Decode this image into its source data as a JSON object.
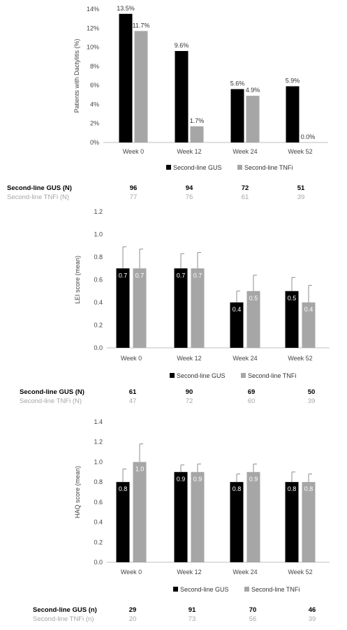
{
  "colors": {
    "gus": "#000000",
    "tnfi": "#a6a6a6",
    "axis": "#bfbfbf"
  },
  "chart_data": [
    {
      "type": "bar",
      "categories": [
        "Week 0",
        "Week 12",
        "Week 24",
        "Week 52"
      ],
      "ylabel": "Patients with Dactylitis (%)",
      "ylim": [
        0,
        14
      ],
      "yticks": [
        "0%",
        "2%",
        "4%",
        "6%",
        "8%",
        "10%",
        "12%",
        "14%"
      ],
      "series": [
        {
          "name": "Second-line GUS",
          "values": [
            13.5,
            9.6,
            5.6,
            5.9
          ],
          "labels": [
            "13.5%",
            "9.6%",
            "5.6%",
            "5.9%"
          ]
        },
        {
          "name": "Second-line TNFi",
          "values": [
            11.7,
            1.7,
            4.9,
            0.0
          ],
          "labels": [
            "11.7%",
            "1.7%",
            "4.9%",
            "0.0%"
          ]
        }
      ],
      "n_table": [
        {
          "label": "Second-line GUS (N)",
          "values": [
            "96",
            "94",
            "72",
            "51"
          ]
        },
        {
          "label": "Second-line TNFi (N)",
          "values": [
            "77",
            "76",
            "61",
            "39"
          ]
        }
      ]
    },
    {
      "type": "bar",
      "categories": [
        "Week 0",
        "Week 12",
        "Week 24",
        "Week 52"
      ],
      "ylabel": "LEI score (mean)",
      "ylim": [
        0,
        1.2
      ],
      "yticks": [
        "0.0",
        "0.2",
        "0.4",
        "0.6",
        "0.8",
        "1.0",
        "1.2"
      ],
      "series": [
        {
          "name": "Second-line GUS",
          "values": [
            0.7,
            0.7,
            0.4,
            0.5
          ],
          "labels": [
            "0.7",
            "0.7",
            "0.4",
            "0.5"
          ],
          "error_upper": [
            0.89,
            0.83,
            0.5,
            0.62
          ]
        },
        {
          "name": "Second-line TNFi",
          "values": [
            0.7,
            0.7,
            0.5,
            0.4
          ],
          "labels": [
            "0.7",
            "0.7",
            "0.5",
            "0.4"
          ],
          "error_upper": [
            0.87,
            0.84,
            0.64,
            0.55
          ]
        }
      ],
      "n_table": [
        {
          "label": "Second-line GUS (N)",
          "values": [
            "61",
            "90",
            "69",
            "50"
          ]
        },
        {
          "label": "Second-line TNFi (N)",
          "values": [
            "47",
            "72",
            "60",
            "39"
          ]
        }
      ]
    },
    {
      "type": "bar",
      "categories": [
        "Week 0",
        "Week 12",
        "Week 24",
        "Week 52"
      ],
      "ylabel": "HAQ score (mean)",
      "ylim": [
        0,
        1.4
      ],
      "yticks": [
        "0.0",
        "0.2",
        "0.4",
        "0.6",
        "0.8",
        "1.0",
        "1.2",
        "1.4"
      ],
      "series": [
        {
          "name": "Second-line GUS",
          "values": [
            0.8,
            0.9,
            0.8,
            0.8
          ],
          "labels": [
            "0.8",
            "0.9",
            "0.8",
            "0.8"
          ],
          "error_upper": [
            0.93,
            0.97,
            0.88,
            0.9
          ]
        },
        {
          "name": "Second-line TNFi",
          "values": [
            1.0,
            0.9,
            0.9,
            0.8
          ],
          "labels": [
            "1.0",
            "0.9",
            "0.9",
            "0.8"
          ],
          "error_upper": [
            1.18,
            0.98,
            0.98,
            0.88
          ]
        }
      ],
      "n_table": [
        {
          "label": "Second-line GUS (n)",
          "values": [
            "29",
            "91",
            "70",
            "46"
          ]
        },
        {
          "label": "Second-line TNFi (n)",
          "values": [
            "20",
            "73",
            "56",
            "39"
          ]
        }
      ]
    }
  ]
}
